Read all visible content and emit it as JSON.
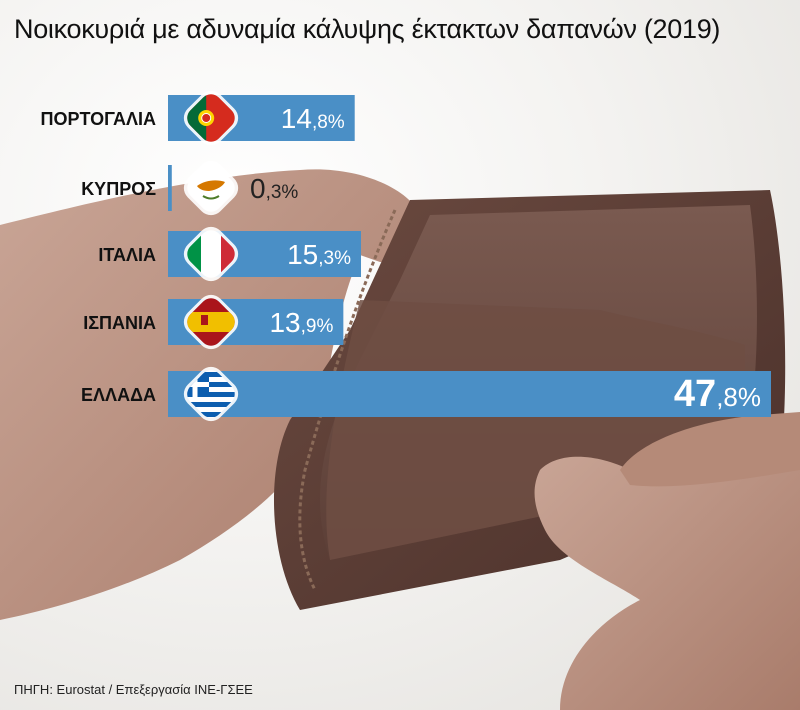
{
  "title": "Νοικοκυριά με αδυναμία κάλυψης έκτακτων δαπανών (2019)",
  "source": "ΠΗΓΗ: Eurostat / Επεξεργασία ΙΝΕ-ΓΣΕΕ",
  "colors": {
    "bar": "#4a8fc6",
    "bar_light": "#6aa6d4",
    "value_on_bar": "#ffffff",
    "value_off_bar": "#222222",
    "label": "#111111"
  },
  "chart_data": {
    "type": "bar",
    "orientation": "horizontal",
    "categories": [
      "ΠΟΡΤΟΓΑΛΙΑ",
      "ΚΥΠΡΟΣ",
      "ΙΤΑΛΙΑ",
      "ΙΣΠΑΝΙΑ",
      "ΕΛΛΑΔΑ"
    ],
    "values": [
      14.8,
      0.3,
      15.3,
      13.9,
      47.8
    ],
    "value_labels": [
      {
        "int": "14",
        "dec": ",8%"
      },
      {
        "int": "0",
        "dec": ",3%"
      },
      {
        "int": "15",
        "dec": ",3%"
      },
      {
        "int": "13",
        "dec": ",9%"
      },
      {
        "int": "47",
        "dec": ",8%"
      }
    ],
    "flag_icons": [
      "portugal-flag-icon",
      "cyprus-flag-icon",
      "italy-flag-icon",
      "spain-flag-icon",
      "greece-flag-icon"
    ],
    "unit": "%",
    "xlim": [
      0,
      47.8
    ],
    "grid": false,
    "legend": "none"
  }
}
